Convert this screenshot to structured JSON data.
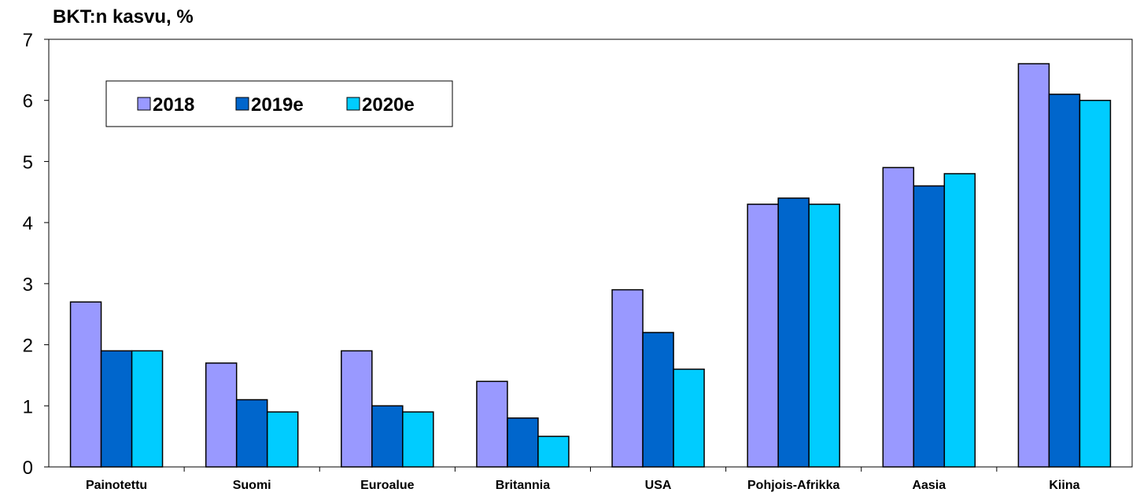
{
  "chart_data": {
    "type": "bar",
    "title": "BKT:n kasvu, %",
    "xlabel": "",
    "ylabel": "",
    "ylim": [
      0,
      7
    ],
    "yticks": [
      "0",
      "1",
      "2",
      "3",
      "4",
      "5",
      "6",
      "7"
    ],
    "grid": false,
    "legend_position": "top-left",
    "categories": [
      "Painotettu",
      "Suomi",
      "Euroalue",
      "Britannia",
      "USA",
      "Pohjois-Afrikka",
      "Aasia",
      "Kiina"
    ],
    "series": [
      {
        "name": "2018",
        "color": "#9999FF",
        "values": [
          2.7,
          1.7,
          1.9,
          1.4,
          2.9,
          4.3,
          4.9,
          6.6
        ]
      },
      {
        "name": "2019e",
        "color": "#0066CC",
        "values": [
          1.9,
          1.1,
          1.0,
          0.8,
          2.2,
          4.4,
          4.6,
          6.1
        ]
      },
      {
        "name": "2020e",
        "color": "#00CCFF",
        "values": [
          1.9,
          0.9,
          0.9,
          0.5,
          1.6,
          4.3,
          4.8,
          6.0
        ]
      }
    ]
  }
}
